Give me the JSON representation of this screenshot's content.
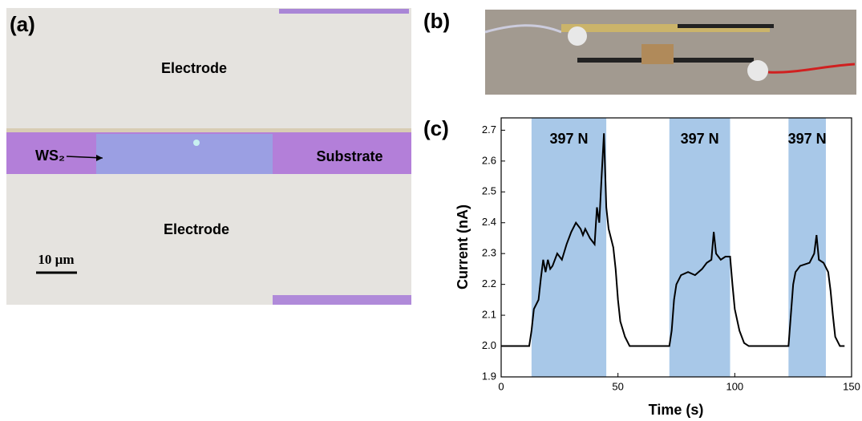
{
  "panels": {
    "a": {
      "label": "(a)",
      "top_electrode": "Electrode",
      "ws2": "WS₂",
      "substrate": "Substrate",
      "bottom_electrode": "Electrode",
      "scale_bar": "10 µm"
    },
    "b": {
      "label": "(b)"
    },
    "c": {
      "label": "(c)"
    }
  },
  "chart_data": {
    "type": "line",
    "x_label": "Time (s)",
    "y_label": "Current (nA)",
    "x": [
      0,
      12,
      13,
      14,
      16,
      17,
      18,
      19,
      20,
      21,
      22,
      24,
      26,
      28,
      30,
      32,
      34,
      35,
      36,
      38,
      40,
      41,
      42,
      43,
      44,
      45,
      46,
      48,
      49,
      50,
      51,
      53,
      55,
      72,
      73,
      74,
      75,
      77,
      80,
      83,
      86,
      88,
      90,
      91,
      92,
      94,
      96,
      98,
      99,
      100,
      102,
      104,
      106,
      123,
      124,
      125,
      126,
      128,
      132,
      134,
      135,
      136,
      138,
      140,
      141,
      142,
      143,
      145,
      147
    ],
    "values": [
      2.0,
      2.0,
      2.05,
      2.12,
      2.15,
      2.22,
      2.28,
      2.24,
      2.28,
      2.25,
      2.26,
      2.3,
      2.28,
      2.33,
      2.37,
      2.4,
      2.38,
      2.36,
      2.38,
      2.35,
      2.33,
      2.45,
      2.4,
      2.55,
      2.69,
      2.45,
      2.38,
      2.32,
      2.25,
      2.15,
      2.08,
      2.03,
      2.0,
      2.0,
      2.05,
      2.15,
      2.2,
      2.23,
      2.24,
      2.23,
      2.25,
      2.27,
      2.28,
      2.37,
      2.3,
      2.28,
      2.29,
      2.29,
      2.2,
      2.12,
      2.05,
      2.01,
      2.0,
      2.0,
      2.1,
      2.2,
      2.24,
      2.26,
      2.27,
      2.3,
      2.36,
      2.28,
      2.27,
      2.24,
      2.18,
      2.1,
      2.03,
      2.0,
      2.0
    ],
    "color": "#000000",
    "shaded": [
      {
        "start": 13,
        "end": 45,
        "label": "397 N"
      },
      {
        "start": 72,
        "end": 98,
        "label": "397 N"
      },
      {
        "start": 123,
        "end": 139,
        "label": "397 N"
      }
    ],
    "shade_color": "#a8c8e8",
    "xlim": [
      0,
      150
    ],
    "xticks": [
      0,
      50,
      100,
      150
    ],
    "ylim": [
      1.9,
      2.74
    ],
    "yticks": [
      1.9,
      {
        "value": 2,
        "label": "2.0"
      },
      2.1,
      2.2,
      2.3,
      2.4,
      2.5,
      2.6,
      2.7
    ]
  }
}
